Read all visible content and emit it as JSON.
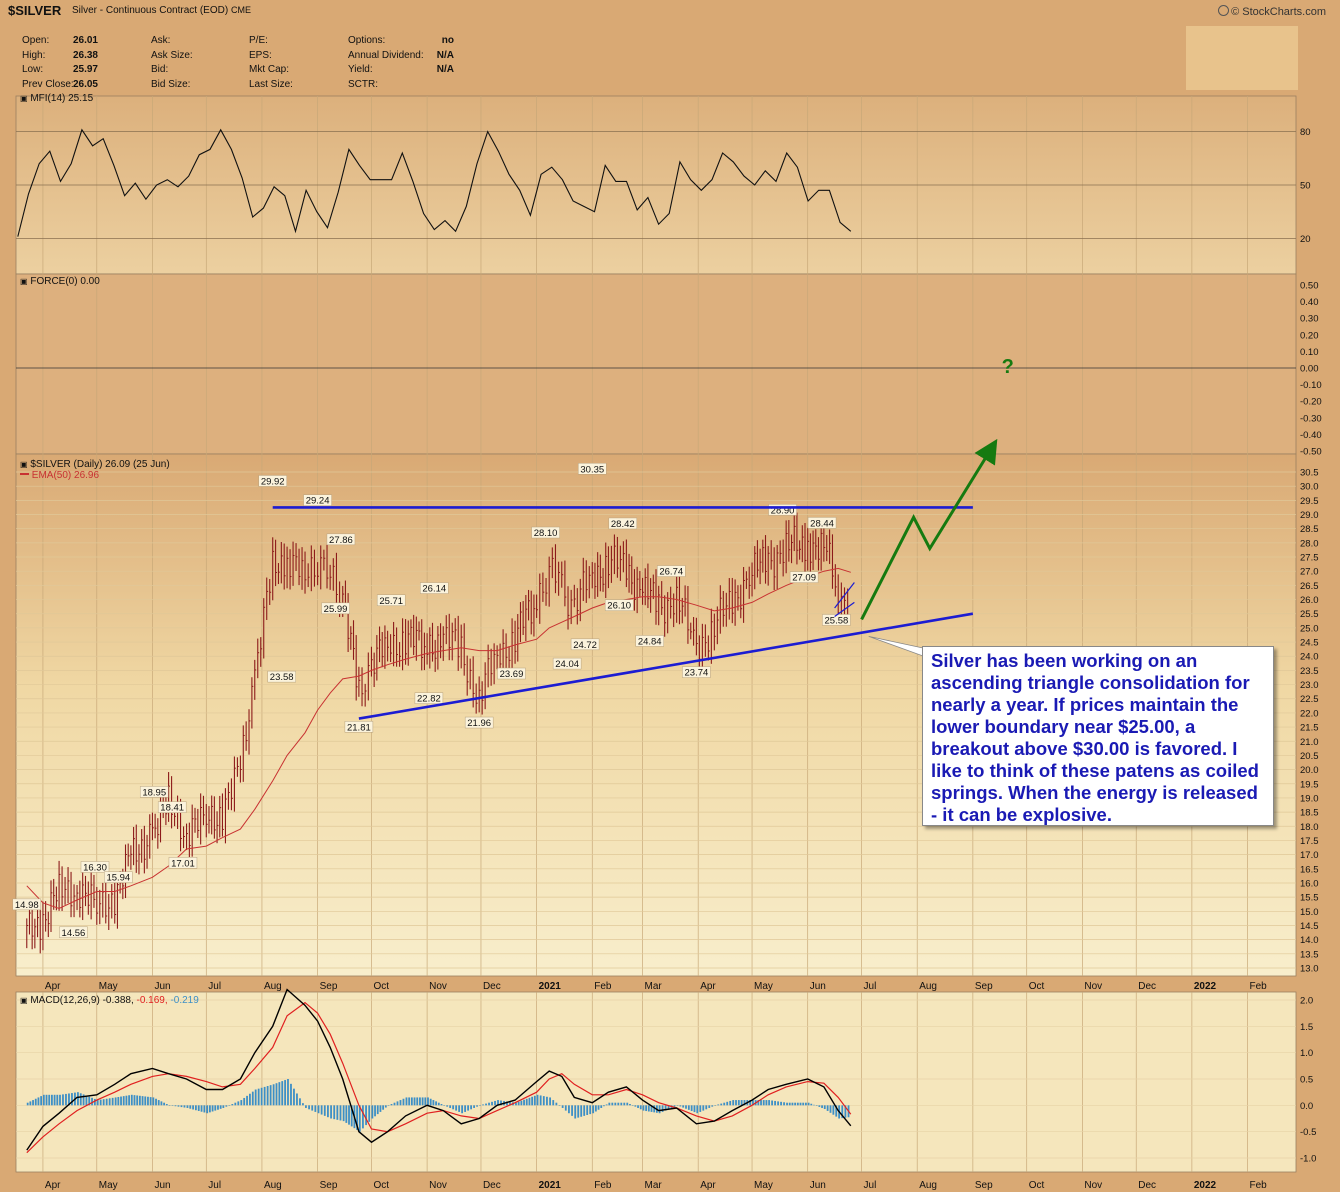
{
  "header": {
    "symbol": "$SILVER",
    "description": "Silver - Continuous Contract (EOD)",
    "exchange": "CME",
    "brand": "© StockCharts.com"
  },
  "quote": {
    "col1": [
      {
        "label": "Open:",
        "value": "26.01"
      },
      {
        "label": "High:",
        "value": "26.38"
      },
      {
        "label": "Low:",
        "value": "25.97"
      },
      {
        "label": "Prev Close:",
        "value": "26.05"
      }
    ],
    "col2": [
      "Ask:",
      "Ask Size:",
      "Bid:",
      "Bid Size:"
    ],
    "col3": [
      "P/E:",
      "EPS:",
      "Mkt Cap:",
      "Last Size:"
    ],
    "col4": [
      {
        "label": "Options:",
        "value": "no"
      },
      {
        "label": "Annual Dividend:",
        "value": "N/A"
      },
      {
        "label": "Yield:",
        "value": "N/A"
      },
      {
        "label": "SCTR:",
        "value": ""
      }
    ]
  },
  "panels": {
    "mfi_label": "MFI(14) 25.15",
    "force_label": "FORCE(0) 0.00",
    "price_label": "$SILVER (Daily) 26.09 (25 Jun)",
    "ema_label": "EMA(50) 26.96",
    "macd_label_main": "MACD(12,26,9) -0.388,",
    "macd_label_signal": "-0.169,",
    "macd_label_hist": "-0.219"
  },
  "annotation": {
    "text": "Silver has been working on an ascending triangle consolidation for nearly a year. If prices maintain the lower boundary near $25.00, a breakout above $30.00 is favored. I like to think of these patens as coiled springs. When the energy is released - it can be explosive.",
    "question_mark": "?"
  },
  "colors": {
    "triangle_line": "#1c1cd2",
    "projection_arrow": "#157a10",
    "annotation_text": "#1a1ab4",
    "ema_line": "#c83232",
    "price_bars": "#8c1a1a",
    "macd_hist": "#3d8fc6",
    "macd_signal": "#e02020",
    "macd_line": "#000000"
  },
  "x_axis_labels": [
    "Apr",
    "May",
    "Jun",
    "Jul",
    "Aug",
    "Sep",
    "Oct",
    "Nov",
    "Dec",
    "2021",
    "Feb",
    "Mar",
    "Apr",
    "May",
    "Jun",
    "Jul",
    "Aug",
    "Sep",
    "Oct",
    "Nov",
    "Dec",
    "2022",
    "Feb"
  ],
  "chart_data": [
    {
      "type": "line",
      "title": "MFI(14) 25.15",
      "ylim": [
        0,
        100
      ],
      "y_ticks": [
        20,
        50,
        80
      ],
      "series": [
        {
          "name": "MFI(14)",
          "values": [
            21,
            45,
            62,
            69,
            52,
            62,
            81,
            72,
            76,
            61,
            44,
            51,
            42,
            50,
            53,
            49,
            55,
            67,
            70,
            81,
            70,
            54,
            32,
            37,
            49,
            44,
            24,
            47,
            35,
            26,
            46,
            70,
            61,
            53,
            53,
            53,
            68,
            52,
            34,
            25,
            30,
            24,
            38,
            62,
            80,
            69,
            56,
            47,
            33,
            56,
            60,
            53,
            41,
            38,
            35,
            61,
            52,
            52,
            36,
            43,
            28,
            34,
            63,
            53,
            47,
            53,
            68,
            63,
            55,
            50,
            58,
            52,
            68,
            60,
            41,
            47,
            47,
            29,
            24
          ]
        }
      ]
    },
    {
      "type": "line",
      "title": "FORCE(0) 0.00",
      "ylim": [
        -0.5,
        0.5
      ],
      "y_ticks": [
        0.5,
        0.4,
        0.3,
        0.2,
        0.1,
        0.0,
        -0.1,
        -0.2,
        -0.3,
        -0.4,
        -0.5
      ],
      "series": [
        {
          "name": "FORCE(0)",
          "values": [
            0.0
          ]
        }
      ]
    },
    {
      "type": "line",
      "title": "$SILVER (Daily) 26.09 (25 Jun)",
      "ylim": [
        13.0,
        30.5
      ],
      "y_ticks": [
        13.0,
        13.5,
        14.0,
        14.5,
        15.0,
        15.5,
        16.0,
        16.5,
        17.0,
        17.5,
        18.0,
        18.5,
        19.0,
        19.5,
        20.0,
        20.5,
        21.0,
        21.5,
        22.0,
        22.5,
        23.0,
        23.5,
        24.0,
        24.5,
        25.0,
        25.5,
        26.0,
        26.5,
        27.0,
        27.5,
        28.0,
        28.5,
        29.0,
        29.5,
        30.0,
        30.5
      ],
      "x": [
        "2020-03-23",
        "2020-04-01",
        "2020-04-10",
        "2020-04-20",
        "2020-05-01",
        "2020-05-11",
        "2020-05-20",
        "2020-06-01",
        "2020-06-10",
        "2020-06-20",
        "2020-07-01",
        "2020-07-10",
        "2020-07-20",
        "2020-07-28",
        "2020-08-07",
        "2020-08-15",
        "2020-08-25",
        "2020-09-01",
        "2020-09-08",
        "2020-09-15",
        "2020-09-24",
        "2020-10-01",
        "2020-10-10",
        "2020-10-20",
        "2020-11-01",
        "2020-11-10",
        "2020-11-20",
        "2020-11-30",
        "2020-12-10",
        "2020-12-20",
        "2021-01-01",
        "2021-01-08",
        "2021-01-15",
        "2021-01-22",
        "2021-02-01",
        "2021-02-10",
        "2021-02-20",
        "2021-03-01",
        "2021-03-10",
        "2021-03-20",
        "2021-03-31",
        "2021-04-10",
        "2021-04-20",
        "2021-05-01",
        "2021-05-10",
        "2021-05-20",
        "2021-06-01",
        "2021-06-10",
        "2021-06-18",
        "2021-06-25"
      ],
      "series": [
        {
          "name": "$SILVER",
          "values": [
            14.2,
            14.8,
            15.6,
            15.9,
            15.0,
            15.6,
            16.8,
            17.9,
            18.7,
            17.9,
            18.1,
            18.6,
            19.9,
            23.5,
            27.0,
            27.5,
            26.7,
            27.5,
            26.8,
            26.2,
            22.5,
            23.8,
            24.3,
            24.7,
            24.2,
            24.8,
            24.1,
            22.6,
            24.0,
            24.7,
            25.9,
            27.2,
            26.4,
            25.7,
            26.9,
            27.3,
            27.1,
            26.3,
            25.8,
            26.0,
            24.4,
            25.0,
            26.0,
            26.9,
            27.4,
            27.8,
            28.0,
            28.0,
            26.1,
            26.09
          ]
        },
        {
          "name": "EMA(50) 26.96",
          "values": [
            15.9,
            15.3,
            15.1,
            15.4,
            15.7,
            15.7,
            15.9,
            16.2,
            16.6,
            17.2,
            17.3,
            17.6,
            17.9,
            18.6,
            19.6,
            20.5,
            21.3,
            22.1,
            22.7,
            23.2,
            23.3,
            23.5,
            23.7,
            23.9,
            24.1,
            24.2,
            24.3,
            24.2,
            24.2,
            24.4,
            24.6,
            25.0,
            25.2,
            25.4,
            25.7,
            25.9,
            26.0,
            26.1,
            26.1,
            26.0,
            25.8,
            25.6,
            25.7,
            25.9,
            26.2,
            26.5,
            26.8,
            27.0,
            27.1,
            26.96
          ]
        }
      ],
      "data_labels": [
        {
          "x": "2020-03-23",
          "y": 14.98,
          "text": "14.98"
        },
        {
          "x": "2020-04-30",
          "y": 16.3,
          "text": "16.30"
        },
        {
          "x": "2020-04-18",
          "y": 14.56,
          "text": "14.56"
        },
        {
          "x": "2020-05-13",
          "y": 15.94,
          "text": "15.94"
        },
        {
          "x": "2020-06-02",
          "y": 18.95,
          "text": "18.95"
        },
        {
          "x": "2020-06-12",
          "y": 18.41,
          "text": "18.41"
        },
        {
          "x": "2020-06-18",
          "y": 17.01,
          "text": "17.01"
        },
        {
          "x": "2020-08-07",
          "y": 29.92,
          "text": "29.92"
        },
        {
          "x": "2020-08-12",
          "y": 23.58,
          "text": "23.58"
        },
        {
          "x": "2020-09-01",
          "y": 29.24,
          "text": "29.24"
        },
        {
          "x": "2020-09-14",
          "y": 27.86,
          "text": "27.86"
        },
        {
          "x": "2020-09-11",
          "y": 25.99,
          "text": "25.99"
        },
        {
          "x": "2020-09-24",
          "y": 21.81,
          "text": "21.81"
        },
        {
          "x": "2020-10-12",
          "y": 25.71,
          "text": "25.71"
        },
        {
          "x": "2020-11-05",
          "y": 26.14,
          "text": "26.14"
        },
        {
          "x": "2020-11-02",
          "y": 22.82,
          "text": "22.82"
        },
        {
          "x": "2020-11-30",
          "y": 21.96,
          "text": "21.96"
        },
        {
          "x": "2020-12-18",
          "y": 23.69,
          "text": "23.69"
        },
        {
          "x": "2021-01-06",
          "y": 28.1,
          "text": "28.10"
        },
        {
          "x": "2021-01-18",
          "y": 24.04,
          "text": "24.04"
        },
        {
          "x": "2021-01-28",
          "y": 24.72,
          "text": "24.72"
        },
        {
          "x": "2021-02-01",
          "y": 30.35,
          "text": "30.35"
        },
        {
          "x": "2021-02-18",
          "y": 28.42,
          "text": "28.42"
        },
        {
          "x": "2021-02-16",
          "y": 26.1,
          "text": "26.10"
        },
        {
          "x": "2021-03-05",
          "y": 24.84,
          "text": "24.84"
        },
        {
          "x": "2021-03-17",
          "y": 26.74,
          "text": "26.74"
        },
        {
          "x": "2021-03-31",
          "y": 23.74,
          "text": "23.74"
        },
        {
          "x": "2021-05-18",
          "y": 28.9,
          "text": "28.90"
        },
        {
          "x": "2021-05-30",
          "y": 27.09,
          "text": "27.09"
        },
        {
          "x": "2021-06-09",
          "y": 28.44,
          "text": "28.44"
        },
        {
          "x": "2021-06-17",
          "y": 25.58,
          "text": "25.58"
        }
      ]
    },
    {
      "type": "line",
      "title": "MACD(12,26,9) -0.388, -0.169, -0.219",
      "ylim": [
        -1.0,
        2.0
      ],
      "y_ticks": [
        2.0,
        1.5,
        1.0,
        0.5,
        0.0,
        -0.5,
        -1.0
      ],
      "series": [
        {
          "name": "MACD(12,26,9)",
          "values": [
            -0.85,
            -0.4,
            -0.15,
            0.15,
            0.2,
            0.4,
            0.6,
            0.7,
            0.6,
            0.5,
            0.3,
            0.3,
            0.5,
            1.0,
            1.5,
            2.2,
            1.9,
            1.6,
            1.1,
            0.5,
            -0.5,
            -0.7,
            -0.5,
            -0.2,
            0.0,
            -0.1,
            -0.35,
            -0.25,
            0.0,
            0.1,
            0.45,
            0.65,
            0.55,
            0.15,
            0.05,
            0.25,
            0.35,
            0.1,
            -0.1,
            -0.05,
            -0.35,
            -0.3,
            -0.1,
            0.1,
            0.3,
            0.4,
            0.5,
            0.35,
            -0.1,
            -0.388
          ]
        },
        {
          "name": "signal",
          "values": [
            -0.9,
            -0.6,
            -0.35,
            -0.1,
            0.1,
            0.25,
            0.4,
            0.55,
            0.6,
            0.55,
            0.45,
            0.35,
            0.4,
            0.7,
            1.1,
            1.7,
            1.95,
            1.75,
            1.35,
            0.8,
            0.0,
            -0.45,
            -0.5,
            -0.35,
            -0.15,
            -0.1,
            -0.2,
            -0.25,
            -0.1,
            0.05,
            0.25,
            0.5,
            0.6,
            0.4,
            0.2,
            0.2,
            0.3,
            0.2,
            0.05,
            -0.05,
            -0.2,
            -0.3,
            -0.2,
            0.0,
            0.2,
            0.35,
            0.45,
            0.42,
            0.15,
            -0.169
          ]
        },
        {
          "name": "histogram",
          "values": [
            0.05,
            0.2,
            0.2,
            0.25,
            0.1,
            0.15,
            0.2,
            0.15,
            0.0,
            -0.05,
            -0.15,
            -0.05,
            0.1,
            0.3,
            0.4,
            0.5,
            -0.05,
            -0.15,
            -0.25,
            -0.3,
            -0.5,
            -0.25,
            0.0,
            0.15,
            0.15,
            0.0,
            -0.15,
            0.0,
            0.1,
            0.05,
            0.2,
            0.15,
            -0.05,
            -0.25,
            -0.15,
            0.05,
            0.05,
            -0.1,
            -0.15,
            0.0,
            -0.15,
            0.0,
            0.1,
            0.1,
            0.1,
            0.05,
            0.05,
            -0.07,
            -0.25,
            -0.219
          ]
        }
      ]
    }
  ]
}
